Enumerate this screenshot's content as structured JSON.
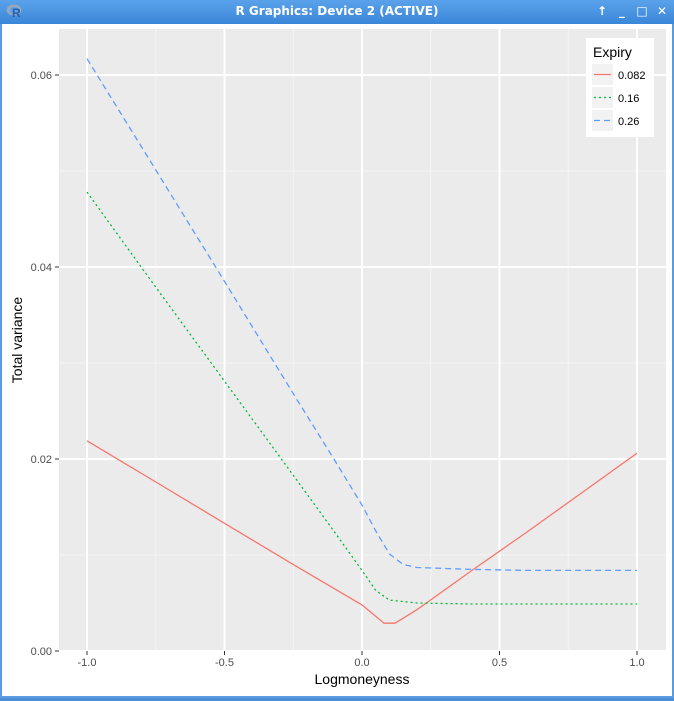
{
  "window": {
    "title": "R Graphics: Device 2 (ACTIVE)",
    "icon": "r-logo-icon",
    "buttons": [
      {
        "name": "raise-button",
        "glyph": "🡅",
        "icon": "arrow-up-icon"
      },
      {
        "name": "minimize-button",
        "glyph": "_",
        "icon": "minimize-icon"
      },
      {
        "name": "maximize-button",
        "glyph": "□",
        "icon": "maximize-icon"
      },
      {
        "name": "close-button",
        "glyph": "✕",
        "icon": "close-icon"
      }
    ]
  },
  "colors": {
    "panel_bg": "#EBEBEB",
    "grid_major": "#FFFFFF",
    "grid_minor": "#F5F5F5",
    "series_0.082": "#F8766D",
    "series_0.16": "#00BA38",
    "series_0.26": "#619CFF"
  },
  "chart_data": {
    "type": "line",
    "title": "",
    "xlabel": "Logmoneyness",
    "ylabel": "Total variance",
    "xlim": [
      -1.1,
      1.1
    ],
    "ylim": [
      -0.001,
      0.0645
    ],
    "xticks": [
      -1.0,
      -0.5,
      0.0,
      0.5,
      1.0
    ],
    "xtick_labels": [
      "-1.0",
      "-0.5",
      "0.0",
      "0.5",
      "1.0"
    ],
    "yticks": [
      0.0,
      0.02,
      0.04,
      0.06
    ],
    "ytick_labels": [
      "0.00",
      "0.02",
      "0.04",
      "0.06"
    ],
    "grid": true,
    "legend": {
      "title": "Expiry",
      "position": "top-right-inside"
    },
    "series": [
      {
        "name": "0.082",
        "linetype": "solid",
        "color": "#F8766D",
        "x": [
          -1.0,
          -0.75,
          -0.5,
          -0.25,
          0.0,
          0.05,
          0.08,
          0.12,
          0.2,
          0.4,
          0.6,
          0.8,
          1.0
        ],
        "y": [
          0.0219,
          0.0176,
          0.0133,
          0.009,
          0.0048,
          0.0036,
          0.0029,
          0.0029,
          0.0043,
          0.0084,
          0.0124,
          0.0165,
          0.0206
        ]
      },
      {
        "name": "0.16",
        "linetype": "dotted",
        "color": "#00BA38",
        "x": [
          -1.0,
          -0.75,
          -0.5,
          -0.25,
          -0.1,
          0.0,
          0.05,
          0.1,
          0.2,
          0.4,
          0.6,
          0.8,
          1.0
        ],
        "y": [
          0.0478,
          0.0379,
          0.0281,
          0.0183,
          0.0124,
          0.0084,
          0.0063,
          0.0053,
          0.005,
          0.0049,
          0.0049,
          0.0049,
          0.0049
        ]
      },
      {
        "name": "0.26",
        "linetype": "dashed",
        "color": "#619CFF",
        "x": [
          -1.0,
          -0.75,
          -0.5,
          -0.25,
          -0.1,
          0.0,
          0.05,
          0.1,
          0.15,
          0.2,
          0.4,
          0.6,
          0.8,
          1.0
        ],
        "y": [
          0.0617,
          0.0501,
          0.0385,
          0.0268,
          0.0199,
          0.0152,
          0.0125,
          0.0101,
          0.009,
          0.0087,
          0.0085,
          0.0084,
          0.0084,
          0.0084
        ]
      }
    ]
  }
}
